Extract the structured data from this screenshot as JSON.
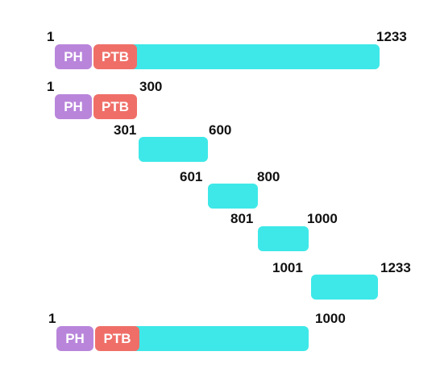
{
  "colors": {
    "ph": "#b985db",
    "ptb": "#ef6f68",
    "region": "#3ee8e8",
    "text": "#111111"
  },
  "domains": {
    "ph_label": "PH",
    "ptb_label": "PTB"
  },
  "constructs": [
    {
      "id": "full-length",
      "start": "1",
      "end": "1233",
      "has_ph": true,
      "has_ptb": true
    },
    {
      "id": "fragment-1-300",
      "start": "1",
      "end": "300",
      "has_ph": true,
      "has_ptb": true
    },
    {
      "id": "fragment-301-600",
      "start": "301",
      "end": "600",
      "has_ph": false,
      "has_ptb": false
    },
    {
      "id": "fragment-601-800",
      "start": "601",
      "end": "800",
      "has_ph": false,
      "has_ptb": false
    },
    {
      "id": "fragment-801-1000",
      "start": "801",
      "end": "1000",
      "has_ph": false,
      "has_ptb": false
    },
    {
      "id": "fragment-1001-1233",
      "start": "1001",
      "end": "1233",
      "has_ph": false,
      "has_ptb": false
    },
    {
      "id": "truncated-1-1000",
      "start": "1",
      "end": "1000",
      "has_ph": true,
      "has_ptb": true
    }
  ]
}
